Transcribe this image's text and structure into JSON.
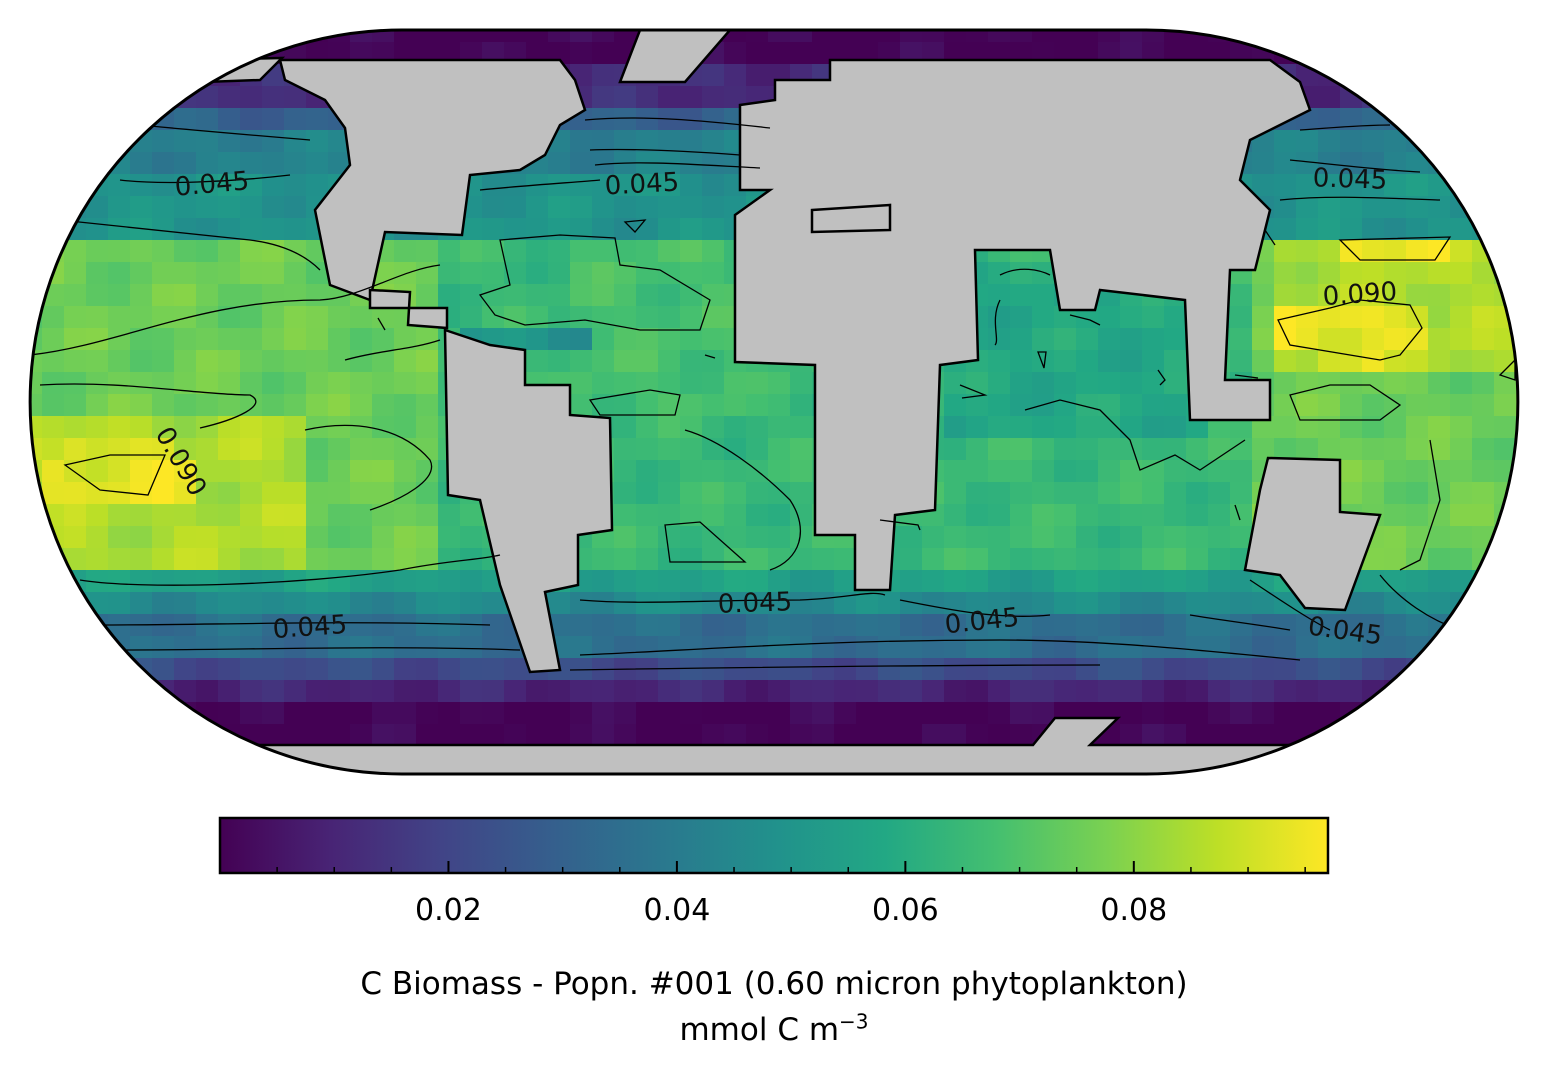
{
  "map": {
    "projection": "eckert-iv-like rounded rectangle",
    "land_color": "#c0c0c0",
    "colormap": "viridis",
    "value_range": [
      0.0,
      0.097
    ],
    "contour_levels": [
      0.045,
      0.09
    ],
    "contour_labels": [
      {
        "text": "0.045"
      },
      {
        "text": "0.045"
      },
      {
        "text": "0.045"
      },
      {
        "text": "0.090"
      },
      {
        "text": "0.090"
      },
      {
        "text": "0.045"
      },
      {
        "text": "0.045"
      },
      {
        "text": "0.045"
      },
      {
        "text": "0.045"
      }
    ]
  },
  "colorbar": {
    "orientation": "horizontal",
    "ticks": [
      {
        "value": 0.02,
        "label": "0.02"
      },
      {
        "value": 0.04,
        "label": "0.04"
      },
      {
        "value": 0.06,
        "label": "0.06"
      },
      {
        "value": 0.08,
        "label": "0.08"
      }
    ],
    "minor_step": 0.005,
    "range": [
      0.0,
      0.097
    ],
    "colors": [
      "#440154",
      "#482475",
      "#414487",
      "#355f8d",
      "#2a788e",
      "#21918c",
      "#22a884",
      "#44bf70",
      "#7ad151",
      "#bddf26",
      "#fde725"
    ],
    "title": "C Biomass - Popn. #001 (0.60 micron phytoplankton)",
    "units_base": "mmol C m",
    "units_exponent": "−3"
  }
}
